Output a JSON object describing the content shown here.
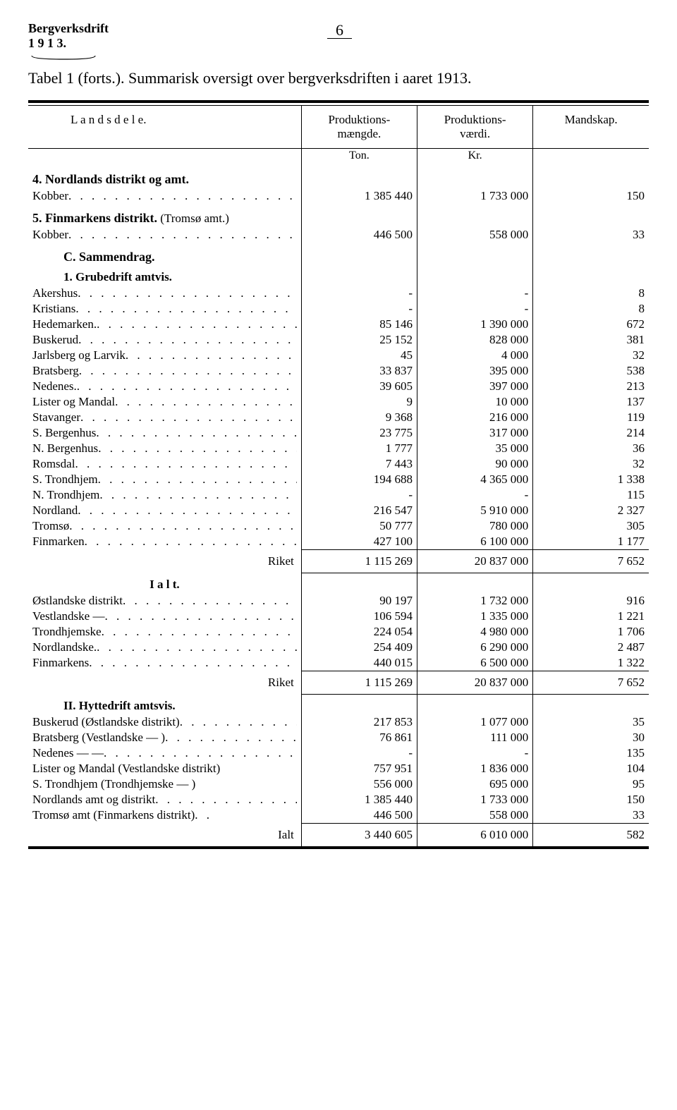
{
  "header": {
    "doc_title": "Bergverksdrift",
    "year": "1 9 1 3.",
    "page_number": "6",
    "main_title": "Tabel 1 (forts.). Summarisk oversigt over bergverksdriften i aaret 1913."
  },
  "columns": {
    "c1": "L a n d s d e l e.",
    "c2": "Produktions-\nmængde.",
    "c3": "Produktions-\nværdi.",
    "c4": "Mandskap."
  },
  "units": {
    "u2": "Ton.",
    "u3": "Kr."
  },
  "sections": [
    {
      "type": "section",
      "label": "4.  Nordlands distrikt og amt."
    },
    {
      "type": "row",
      "label": "Kobber",
      "v": [
        "1 385 440",
        "1 733 000",
        "150"
      ]
    },
    {
      "type": "section",
      "label": "5.  Finmarkens distrikt.",
      "suffix": "(Tromsø amt.)"
    },
    {
      "type": "row",
      "label": "Kobber",
      "v": [
        "446 500",
        "558 000",
        "33"
      ]
    },
    {
      "type": "section",
      "label": "C. Sammendrag.",
      "indent": true
    },
    {
      "type": "subhead",
      "label": "1.   Grubedrift amtvis.",
      "indent": true
    },
    {
      "type": "row",
      "label": "Akershus",
      "v": [
        "-",
        "-",
        "8"
      ]
    },
    {
      "type": "row",
      "label": "Kristians",
      "v": [
        "-",
        "-",
        "8"
      ]
    },
    {
      "type": "row",
      "label": "Hedemarken.",
      "v": [
        "85 146",
        "1 390 000",
        "672"
      ]
    },
    {
      "type": "row",
      "label": "Buskerud",
      "v": [
        "25 152",
        "828 000",
        "381"
      ]
    },
    {
      "type": "row",
      "label": "Jarlsberg og Larvik",
      "v": [
        "45",
        "4 000",
        "32"
      ]
    },
    {
      "type": "row",
      "label": "Bratsberg",
      "v": [
        "33 837",
        "395 000",
        "538"
      ]
    },
    {
      "type": "row",
      "label": "Nedenes.",
      "v": [
        "39 605",
        "397 000",
        "213"
      ]
    },
    {
      "type": "row",
      "label": "Lister og Mandal",
      "v": [
        "9",
        "10 000",
        "137"
      ]
    },
    {
      "type": "row",
      "label": "Stavanger",
      "v": [
        "9 368",
        "216 000",
        "119"
      ]
    },
    {
      "type": "row",
      "label": "S. Bergenhus",
      "v": [
        "23 775",
        "317 000",
        "214"
      ]
    },
    {
      "type": "row",
      "label": "N. Bergenhus",
      "v": [
        "1 777",
        "35 000",
        "36"
      ]
    },
    {
      "type": "row",
      "label": "Romsdal",
      "v": [
        "7 443",
        "90 000",
        "32"
      ]
    },
    {
      "type": "row",
      "label": "S. Trondhjem",
      "v": [
        "194 688",
        "4 365 000",
        "1 338"
      ]
    },
    {
      "type": "row",
      "label": "N. Trondhjem",
      "v": [
        "-",
        "-",
        "115"
      ]
    },
    {
      "type": "row",
      "label": "Nordland",
      "v": [
        "216 547",
        "5 910 000",
        "2 327"
      ]
    },
    {
      "type": "row",
      "label": "Tromsø",
      "v": [
        "50 777",
        "780 000",
        "305"
      ]
    },
    {
      "type": "row",
      "label": "Finmarken",
      "v": [
        "427 100",
        "6 100 000",
        "1 177"
      ]
    },
    {
      "type": "total",
      "label": "Riket",
      "v": [
        "1 115 269",
        "20 837 000",
        "7 652"
      ]
    },
    {
      "type": "subhead",
      "label": "I a l t.",
      "center": true
    },
    {
      "type": "row",
      "label": "Østlandske distrikt",
      "v": [
        "90 197",
        "1 732 000",
        "916"
      ]
    },
    {
      "type": "row",
      "label": "Vestlandske      —",
      "v": [
        "106 594",
        "1 335 000",
        "1 221"
      ]
    },
    {
      "type": "row",
      "label": "Trondhjemske",
      "v": [
        "224 054",
        "4 980 000",
        "1 706"
      ]
    },
    {
      "type": "row",
      "label": "Nordlandske.",
      "v": [
        "254 409",
        "6 290 000",
        "2 487"
      ]
    },
    {
      "type": "row",
      "label": "Finmarkens",
      "v": [
        "440 015",
        "6 500 000",
        "1 322"
      ]
    },
    {
      "type": "total",
      "label": "Riket",
      "v": [
        "1 115 269",
        "20 837 000",
        "7 652"
      ]
    },
    {
      "type": "subhead",
      "label": "II.   Hyttedrift amtsvis.",
      "indent": true
    },
    {
      "type": "row",
      "label": "Buskerud (Østlandske distrikt)",
      "v": [
        "217 853",
        "1 077 000",
        "35"
      ]
    },
    {
      "type": "row",
      "label": "Bratsberg (Vestlandske    —   )",
      "v": [
        "76 861",
        "111 000",
        "30"
      ]
    },
    {
      "type": "row",
      "label": "Nedenes        —              —",
      "v": [
        "-",
        "-",
        "135"
      ]
    },
    {
      "type": "row",
      "label": "Lister og Mandal (Vestlandske distrikt)",
      "nodots": true,
      "v": [
        "757 951",
        "1 836 000",
        "104"
      ]
    },
    {
      "type": "row",
      "label": "S. Trondhjem (Trondhjemske    —   )",
      "nodots": true,
      "v": [
        "556 000",
        "695 000",
        "95"
      ]
    },
    {
      "type": "row",
      "label": "Nordlands amt og distrikt",
      "v": [
        "1 385 440",
        "1 733 000",
        "150"
      ]
    },
    {
      "type": "row",
      "label": "Tromsø amt (Finmarkens distrikt)",
      "shortdots": true,
      "v": [
        "446 500",
        "558 000",
        "33"
      ]
    },
    {
      "type": "total",
      "label": "Ialt",
      "v": [
        "3 440 605",
        "6 010 000",
        "582"
      ],
      "final": true
    }
  ]
}
